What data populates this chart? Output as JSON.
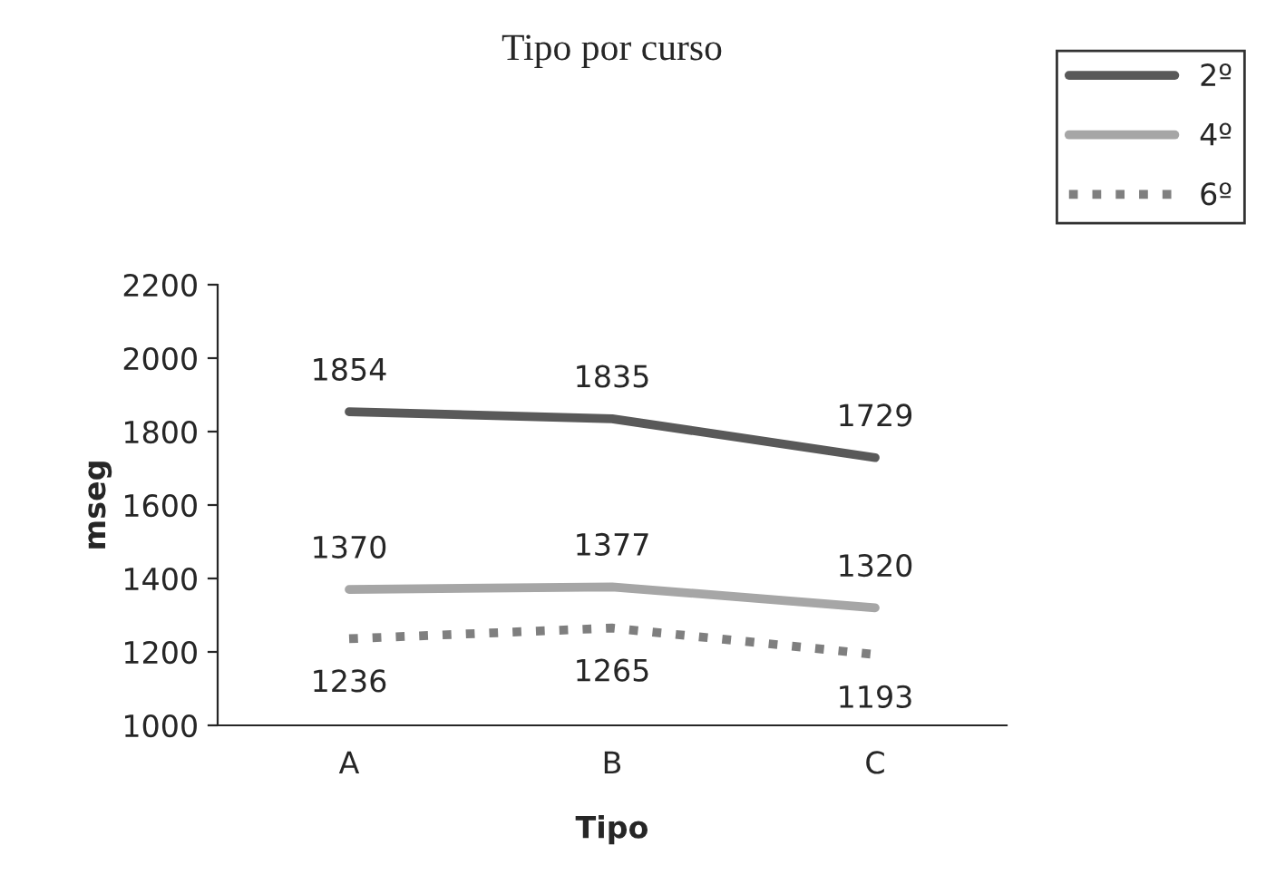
{
  "chart_data": {
    "type": "line",
    "title": "Tipo por curso",
    "xlabel": "Tipo",
    "ylabel": "mseg",
    "categories": [
      "A",
      "B",
      "C"
    ],
    "series": [
      {
        "name": "2º",
        "color": "#595959",
        "values": [
          1854,
          1835,
          1729
        ],
        "line_style": "solid"
      },
      {
        "name": "4º",
        "color": "#a6a6a6",
        "values": [
          1370,
          1377,
          1320
        ],
        "line_style": "solid"
      },
      {
        "name": "6º",
        "color": "#7f7f7f",
        "values": [
          1236,
          1265,
          1193
        ],
        "line_style": "dotted"
      }
    ],
    "ylim": [
      1000,
      2200
    ],
    "yticks": [
      1000,
      1200,
      1400,
      1600,
      1800,
      2000,
      2200
    ],
    "data_labels": true,
    "grid": false,
    "legend": "top right",
    "marker": "none"
  }
}
